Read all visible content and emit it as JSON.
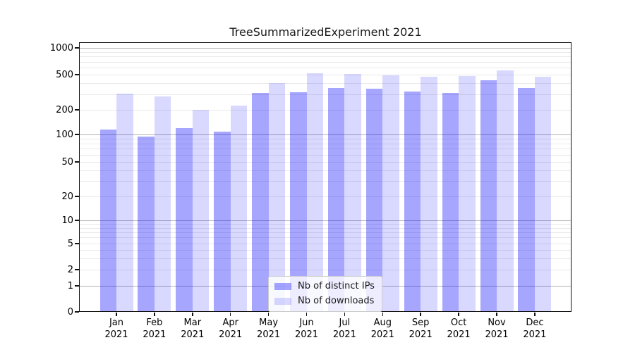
{
  "chart_data": {
    "type": "bar",
    "title": "TreeSummarizedExperiment 2021",
    "categories": [
      "Jan",
      "Feb",
      "Mar",
      "Apr",
      "May",
      "Jun",
      "Jul",
      "Aug",
      "Sep",
      "Oct",
      "Nov",
      "Dec"
    ],
    "year": "2021",
    "series": [
      {
        "name": "Nb of distinct IPs",
        "color": "#0000ff",
        "alpha": 0.35,
        "effective_color": "#a6a6ff",
        "values": [
          115,
          94,
          120,
          109,
          309,
          315,
          352,
          345,
          320,
          308,
          430,
          350
        ]
      },
      {
        "name": "Nb of downloads",
        "color": "#0000ff",
        "alpha": 0.15,
        "effective_color": "#d9d9ff",
        "values": [
          303,
          285,
          200,
          225,
          403,
          521,
          513,
          492,
          476,
          483,
          561,
          470
        ]
      }
    ],
    "xlabel": "",
    "ylabel": "",
    "y_axis": {
      "scale": "symlog",
      "tick_values": [
        0,
        1,
        2,
        5,
        10,
        20,
        50,
        100,
        200,
        500,
        1000
      ],
      "tick_labels": [
        "0",
        "1",
        "2",
        "5",
        "10",
        "20",
        "50",
        "100",
        "200",
        "500",
        "1000"
      ],
      "ylim": [
        0,
        1100
      ]
    },
    "grid": "both (major darker, minor lighter), horizontal only",
    "legend": {
      "position": "lower center",
      "entries": [
        "Nb of distinct IPs",
        "Nb of downloads"
      ]
    }
  }
}
